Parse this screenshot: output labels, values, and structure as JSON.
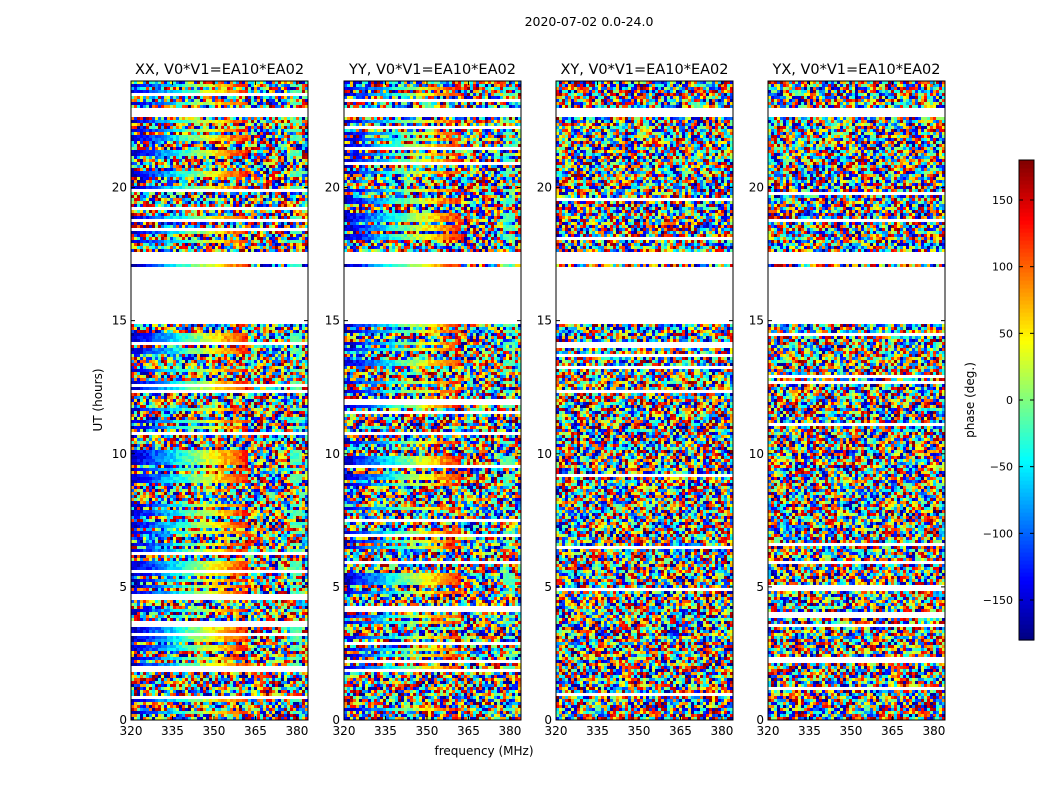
{
  "chart_data": {
    "type": "heatmap",
    "title": "2020-07-02 0.0-24.0",
    "xlabel": "frequency (MHz)",
    "ylabel": "UT (hours)",
    "xlim": [
      320,
      384
    ],
    "ylim": [
      0,
      24
    ],
    "x_ticks": [
      {
        "value": 320,
        "label": "320"
      },
      {
        "value": 335,
        "label": "335"
      },
      {
        "value": 350,
        "label": "350"
      },
      {
        "value": 365,
        "label": "365"
      },
      {
        "value": 380,
        "label": "380"
      }
    ],
    "y_ticks": [
      {
        "value": 0,
        "label": "0"
      },
      {
        "value": 5,
        "label": "5"
      },
      {
        "value": 10,
        "label": "10"
      },
      {
        "value": 15,
        "label": "15"
      },
      {
        "value": 20,
        "label": "20"
      }
    ],
    "panels": [
      {
        "title": "XX, V0*V1=EA10*EA02",
        "type": "parallel"
      },
      {
        "title": "YY, V0*V1=EA10*EA02",
        "type": "parallel"
      },
      {
        "title": "XY, V0*V1=EA10*EA02",
        "type": "cross"
      },
      {
        "title": "YX, V0*V1=EA10*EA02",
        "type": "cross"
      }
    ],
    "flagged_hours": [
      [
        14.85,
        17.0
      ],
      [
        17.1,
        17.55
      ],
      [
        22.5,
        22.55
      ],
      [
        22.6,
        23.0
      ]
    ],
    "colorbar": {
      "label": "phase (deg.)",
      "range": [
        -180,
        180
      ],
      "ticks": [
        {
          "value": 150,
          "label": "150"
        },
        {
          "value": 100,
          "label": "100"
        },
        {
          "value": 50,
          "label": "50"
        },
        {
          "value": 0,
          "label": "0"
        },
        {
          "value": -50,
          "label": "−50"
        },
        {
          "value": -100,
          "label": "−100"
        },
        {
          "value": -150,
          "label": "−150"
        }
      ],
      "colormap": "jet"
    }
  }
}
